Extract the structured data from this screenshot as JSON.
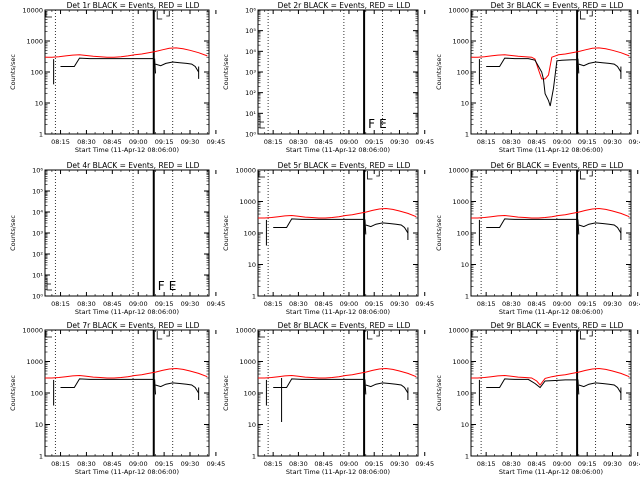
{
  "figure": {
    "xlabel": "Start Time (11-Apr-12 08:06:00)",
    "ylabel": "Counts/sec"
  },
  "chart_data": [
    {
      "type": "line",
      "title": "Det 1r BLACK = Events, RED = LLD",
      "scale": "log",
      "ylim": [
        1,
        10000
      ],
      "yticks": [
        "1",
        "10",
        "100",
        "1000",
        "10000"
      ],
      "xticks": [
        "08:15",
        "08:30",
        "08:45",
        "09:00",
        "09:15",
        "09:30",
        "09:45"
      ],
      "xlim_min": [
        6,
        46
      ],
      "has_data": true,
      "dip": false,
      "spikes": [
        0
      ],
      "series": [
        {
          "name": "Events",
          "color": "#000000",
          "x": [
            6,
            8,
            10,
            12,
            16,
            21,
            24,
            28,
            32,
            36,
            41,
            42,
            44,
            47,
            50,
            56,
            62,
            63,
            63.5,
            64,
            67,
            70,
            72,
            74,
            76,
            77,
            78
          ],
          "y": [
            null,
            null,
            null,
            null,
            140,
            150,
            280,
            270,
            270,
            265,
            265,
            null,
            null,
            null,
            180,
            200,
            210,
            190,
            175,
            165,
            160,
            160,
            150,
            155,
            150,
            100,
            null
          ]
        },
        {
          "name": "LLD",
          "color": "#ff0000",
          "x": [
            6,
            10,
            14,
            18,
            22,
            26,
            30,
            34,
            38,
            41,
            44,
            48,
            52,
            56,
            60,
            64,
            66,
            68,
            70,
            72,
            74,
            76,
            78
          ],
          "y": [
            null,
            null,
            300,
            320,
            330,
            340,
            330,
            320,
            310,
            300,
            295,
            300,
            330,
            370,
            410,
            470,
            520,
            560,
            560,
            530,
            470,
            400,
            360
          ]
        }
      ]
    },
    {
      "type": "line",
      "title": "Det 2r BLACK = Events, RED = LLD",
      "scale": "exp",
      "ylim": [
        1,
        1000000
      ],
      "yticks": [
        "10⁰",
        "10¹",
        "10²",
        "10³",
        "10⁴",
        "10⁵",
        "10⁶"
      ],
      "xticks": [
        "08:15",
        "08:30",
        "08:45",
        "09:00",
        "09:15",
        "09:30",
        "09:45"
      ],
      "xlim_min": [
        6,
        46
      ],
      "has_data": false,
      "series": []
    },
    {
      "type": "line",
      "title": "Det 3r BLACK = Events, RED = LLD",
      "scale": "log",
      "ylim": [
        1,
        10000
      ],
      "yticks": [
        "1",
        "10",
        "100",
        "1000",
        "10000"
      ],
      "xticks": [
        "08:15",
        "08:30",
        "08:45",
        "09:00",
        "09:15",
        "09:30",
        "09:45"
      ],
      "xlim_min": [
        6,
        46
      ],
      "has_data": true,
      "dip": true,
      "spikes": [
        0
      ],
      "series": [
        {
          "name": "Events",
          "color": "#000000"
        },
        {
          "name": "LLD",
          "color": "#ff0000"
        }
      ]
    },
    {
      "type": "line",
      "title": "Det 4r BLACK = Events, RED = LLD",
      "scale": "exp",
      "ylim": [
        1,
        1000000
      ],
      "yticks": [
        "10⁰",
        "10¹",
        "10²",
        "10³",
        "10⁴",
        "10⁵",
        "10⁶"
      ],
      "xticks": [
        "08:15",
        "08:30",
        "08:45",
        "09:00",
        "09:15",
        "09:30",
        "09:45"
      ],
      "xlim_min": [
        6,
        46
      ],
      "has_data": false,
      "series": []
    },
    {
      "type": "line",
      "title": "Det 5r BLACK = Events, RED = LLD",
      "scale": "log",
      "ylim": [
        1,
        10000
      ],
      "yticks": [
        "1",
        "10",
        "100",
        "1000",
        "10000"
      ],
      "xticks": [
        "08:15",
        "08:30",
        "08:45",
        "09:00",
        "09:15",
        "09:30",
        "09:45"
      ],
      "xlim_min": [
        6,
        46
      ],
      "has_data": true,
      "dip": false,
      "spikes": [
        0
      ],
      "series": [
        {
          "name": "Events",
          "color": "#000000"
        },
        {
          "name": "LLD",
          "color": "#ff0000"
        }
      ]
    },
    {
      "type": "line",
      "title": "Det 6r BLACK = Events, RED = LLD",
      "scale": "log",
      "ylim": [
        1,
        10000
      ],
      "yticks": [
        "1",
        "10",
        "100",
        "1000",
        "10000"
      ],
      "xticks": [
        "08:15",
        "08:30",
        "08:45",
        "09:00",
        "09:15",
        "09:30",
        "09:45"
      ],
      "xlim_min": [
        6,
        46
      ],
      "has_data": true,
      "dip": false,
      "spikes": [
        0
      ],
      "series": [
        {
          "name": "Events",
          "color": "#000000"
        },
        {
          "name": "LLD",
          "color": "#ff0000"
        }
      ]
    },
    {
      "type": "line",
      "title": "Det 7r BLACK = Events, RED = LLD",
      "scale": "log",
      "ylim": [
        1,
        10000
      ],
      "yticks": [
        "1",
        "10",
        "100",
        "1000",
        "10000"
      ],
      "xticks": [
        "08:15",
        "08:30",
        "08:45",
        "09:00",
        "09:15",
        "09:30",
        "09:45"
      ],
      "xlim_min": [
        6,
        46
      ],
      "has_data": true,
      "dip": false,
      "spikes": [
        0
      ],
      "series": [
        {
          "name": "Events",
          "color": "#000000"
        },
        {
          "name": "LLD",
          "color": "#ff0000"
        }
      ]
    },
    {
      "type": "line",
      "title": "Det 8r BLACK = Events, RED = LLD",
      "scale": "log",
      "ylim": [
        1,
        10000
      ],
      "yticks": [
        "1",
        "10",
        "100",
        "1000",
        "10000"
      ],
      "xticks": [
        "08:15",
        "08:30",
        "08:45",
        "09:00",
        "09:15",
        "09:30",
        "09:45"
      ],
      "xlim_min": [
        6,
        46
      ],
      "has_data": true,
      "dip": false,
      "spikes": [
        0,
        1
      ],
      "series": [
        {
          "name": "Events",
          "color": "#000000"
        },
        {
          "name": "LLD",
          "color": "#ff0000"
        }
      ]
    },
    {
      "type": "line",
      "title": "Det 9r BLACK = Events, RED = LLD",
      "scale": "log",
      "ylim": [
        1,
        10000
      ],
      "yticks": [
        "1",
        "10",
        "100",
        "1000",
        "10000"
      ],
      "xticks": [
        "08:15",
        "08:30",
        "08:45",
        "09:00",
        "09:15",
        "09:30",
        "09:45"
      ],
      "xlim_min": [
        6,
        46
      ],
      "has_data": true,
      "dip": false,
      "small_dip": true,
      "spikes": [
        0
      ],
      "series": [
        {
          "name": "Events",
          "color": "#000000"
        },
        {
          "name": "LLD",
          "color": "#ff0000"
        }
      ]
    }
  ],
  "markers": {
    "dotted_minutes": [
      12,
      57,
      80
    ],
    "solid_minute": 69,
    "flag_letters": [
      "F",
      "E"
    ]
  }
}
